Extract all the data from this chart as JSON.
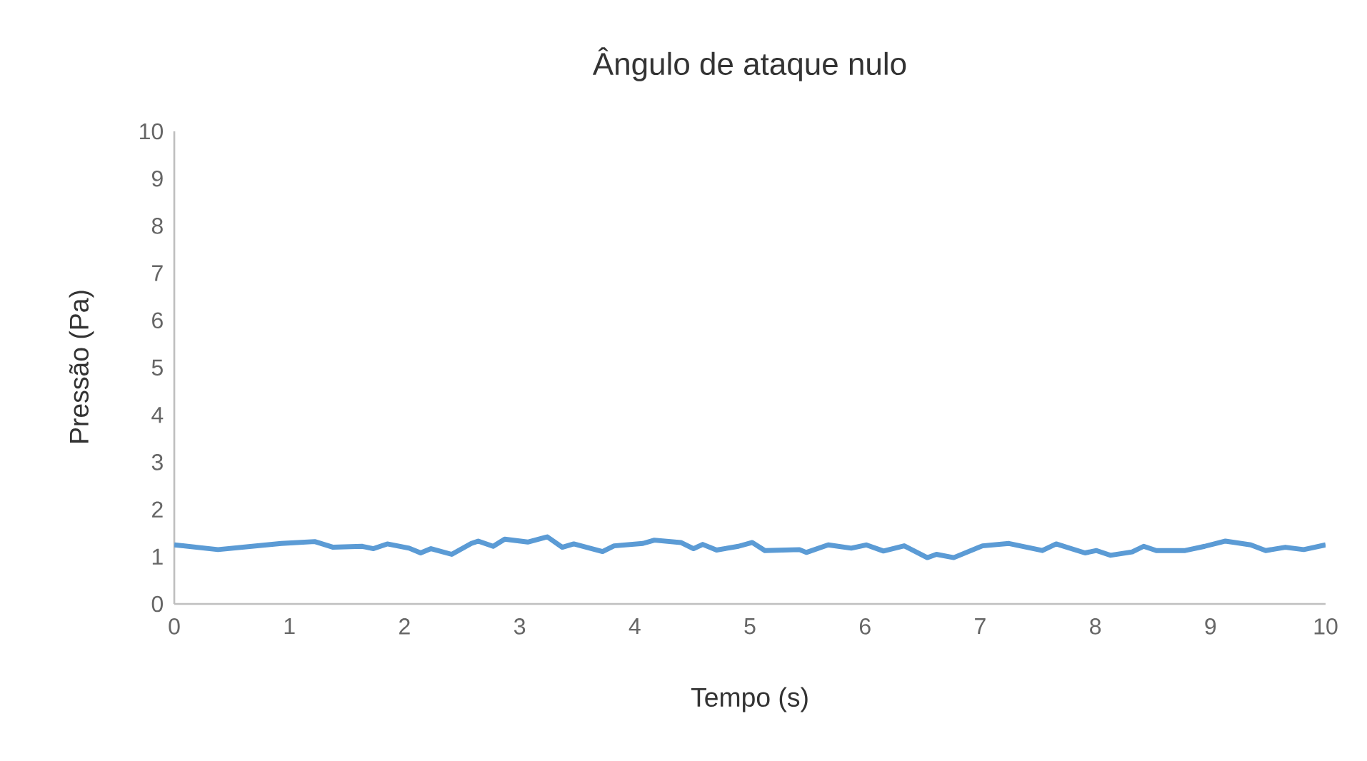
{
  "chart_data": {
    "type": "line",
    "title": "Ângulo de ataque nulo",
    "xlabel": "Tempo (s)",
    "ylabel": "Pressão (Pa)",
    "xlim": [
      0,
      10
    ],
    "ylim": [
      0,
      10
    ],
    "xticks": [
      0,
      1,
      2,
      3,
      4,
      5,
      6,
      7,
      8,
      9,
      10
    ],
    "yticks": [
      0,
      1,
      2,
      3,
      4,
      5,
      6,
      7,
      8,
      9,
      10
    ],
    "grid": false,
    "marker": "none",
    "line_style": "solid",
    "series": [
      {
        "color": "#5b9bd5",
        "x": [
          0.0,
          0.38,
          0.93,
          1.22,
          1.38,
          1.63,
          1.73,
          1.85,
          2.04,
          2.14,
          2.23,
          2.41,
          2.58,
          2.64,
          2.77,
          2.87,
          3.07,
          3.24,
          3.37,
          3.47,
          3.72,
          3.82,
          4.07,
          4.17,
          4.4,
          4.51,
          4.59,
          4.71,
          4.9,
          5.02,
          5.13,
          5.43,
          5.49,
          5.68,
          5.88,
          6.01,
          6.16,
          6.34,
          6.54,
          6.62,
          6.77,
          7.02,
          7.25,
          7.54,
          7.66,
          7.91,
          8.01,
          8.13,
          8.32,
          8.42,
          8.53,
          8.78,
          8.95,
          9.13,
          9.35,
          9.48,
          9.65,
          9.81,
          10.0
        ],
        "values": [
          1.25,
          1.15,
          1.28,
          1.32,
          1.2,
          1.22,
          1.17,
          1.27,
          1.18,
          1.08,
          1.17,
          1.05,
          1.28,
          1.33,
          1.22,
          1.37,
          1.31,
          1.42,
          1.2,
          1.27,
          1.11,
          1.23,
          1.28,
          1.35,
          1.3,
          1.17,
          1.26,
          1.14,
          1.22,
          1.3,
          1.13,
          1.15,
          1.09,
          1.25,
          1.18,
          1.25,
          1.12,
          1.23,
          0.98,
          1.05,
          0.98,
          1.23,
          1.28,
          1.13,
          1.27,
          1.08,
          1.13,
          1.03,
          1.1,
          1.22,
          1.13,
          1.13,
          1.22,
          1.33,
          1.25,
          1.13,
          1.2,
          1.15,
          1.25
        ]
      }
    ]
  }
}
